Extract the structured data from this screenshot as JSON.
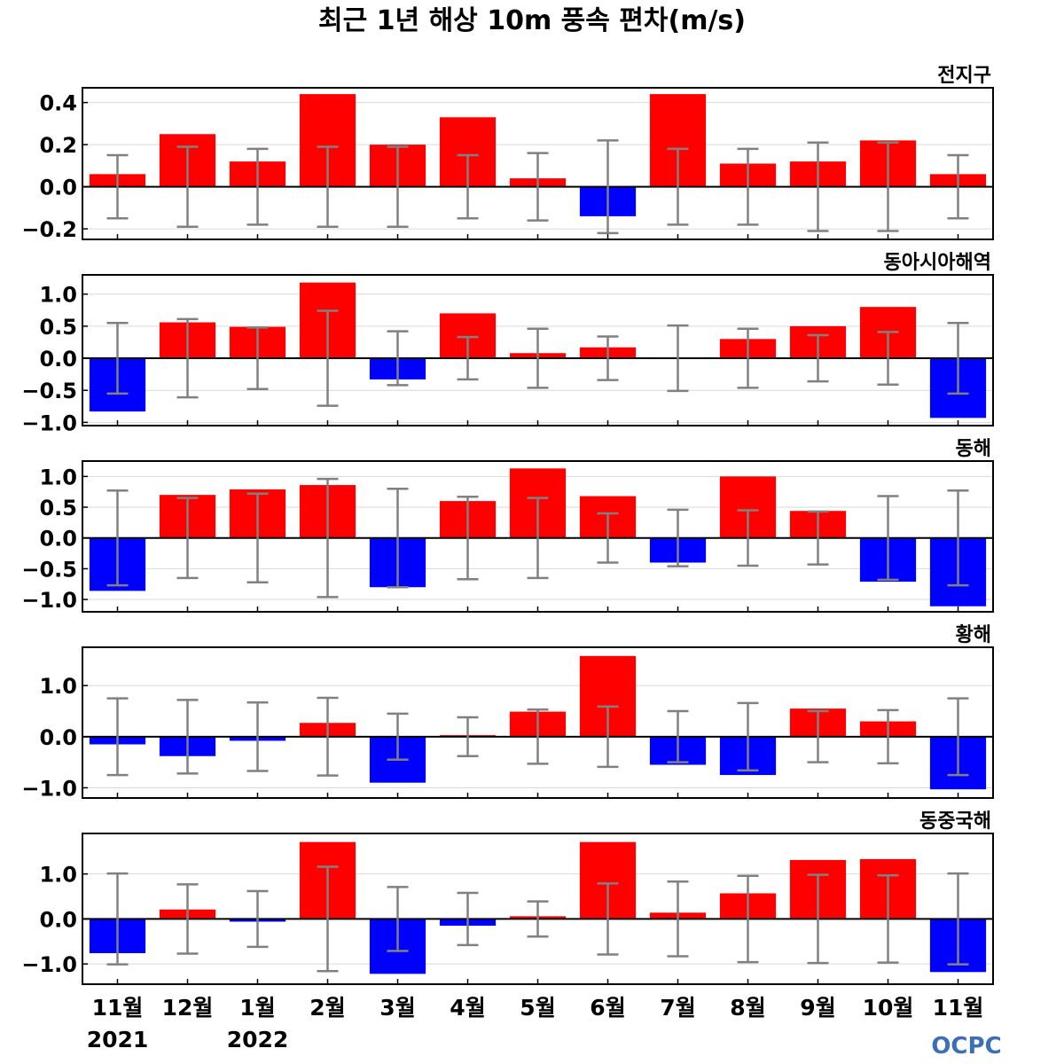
{
  "chart_data": {
    "type": "bar",
    "title": "최근 1년 해상 10m 풍속 편차(m/s)",
    "categories": [
      "11월",
      "12월",
      "1월",
      "2월",
      "3월",
      "4월",
      "5월",
      "6월",
      "7월",
      "8월",
      "9월",
      "10월",
      "11월"
    ],
    "year_labels": [
      "2021",
      "",
      "2022",
      "",
      "",
      "",
      "",
      "",
      "",
      "",
      "",
      "",
      ""
    ],
    "colors": {
      "positive": "#ff0000",
      "negative": "#0000ff",
      "errorbar": "#808080",
      "zero_line": "#000000",
      "grid": "#d9d9d9"
    },
    "panels": [
      {
        "name": "전지구",
        "ylim": [
          -0.25,
          0.47
        ],
        "yticks": [
          0.4,
          0.2,
          0.0,
          -0.2
        ],
        "ytick_labels": [
          "0.4",
          "0.2",
          "0.0",
          "−0.2"
        ],
        "values": [
          0.06,
          0.25,
          0.12,
          0.44,
          0.2,
          0.33,
          0.04,
          -0.14,
          0.44,
          0.11,
          0.12,
          0.22,
          0.06
        ],
        "error": [
          0.15,
          0.19,
          0.18,
          0.19,
          0.19,
          0.15,
          0.16,
          0.22,
          0.18,
          0.18,
          0.21,
          0.21,
          0.15
        ]
      },
      {
        "name": "동아시아해역",
        "ylim": [
          -1.05,
          1.3
        ],
        "yticks": [
          1.0,
          0.5,
          0.0,
          -0.5,
          -1.0
        ],
        "ytick_labels": [
          "1.0",
          "0.5",
          "0.0",
          "−0.5",
          "−1.0"
        ],
        "values": [
          -0.83,
          0.56,
          0.49,
          1.18,
          -0.33,
          0.7,
          0.08,
          0.17,
          0.0,
          0.3,
          0.5,
          0.8,
          -0.93
        ],
        "error": [
          0.55,
          0.61,
          0.48,
          0.74,
          0.42,
          0.33,
          0.46,
          0.34,
          0.51,
          0.46,
          0.36,
          0.41,
          0.55
        ]
      },
      {
        "name": "동해",
        "ylim": [
          -1.2,
          1.25
        ],
        "yticks": [
          1.0,
          0.5,
          0.0,
          -0.5,
          -1.0
        ],
        "ytick_labels": [
          "1.0",
          "0.5",
          "0.0",
          "−0.5",
          "−1.0"
        ],
        "values": [
          -0.86,
          0.7,
          0.79,
          0.86,
          -0.8,
          0.6,
          1.13,
          0.68,
          -0.4,
          1.0,
          0.44,
          -0.71,
          -1.11
        ],
        "error": [
          0.77,
          0.65,
          0.72,
          0.96,
          0.8,
          0.67,
          0.65,
          0.4,
          0.46,
          0.45,
          0.43,
          0.68,
          0.77
        ]
      },
      {
        "name": "황해",
        "ylim": [
          -1.2,
          1.75
        ],
        "yticks": [
          1.0,
          0.0,
          -1.0
        ],
        "ytick_labels": [
          "1.0",
          "0.0",
          "−1.0"
        ],
        "values": [
          -0.15,
          -0.38,
          -0.08,
          0.27,
          -0.9,
          0.03,
          0.49,
          1.58,
          -0.55,
          -0.75,
          0.55,
          0.3,
          -1.03
        ],
        "error": [
          0.75,
          0.72,
          0.67,
          0.76,
          0.45,
          0.38,
          0.53,
          0.59,
          0.5,
          0.66,
          0.5,
          0.52,
          0.75
        ]
      },
      {
        "name": "동중국해",
        "ylim": [
          -1.45,
          1.9
        ],
        "yticks": [
          1.0,
          0.0,
          -1.0
        ],
        "ytick_labels": [
          "1.0",
          "0.0",
          "−1.0"
        ],
        "values": [
          -0.76,
          0.21,
          -0.06,
          1.71,
          -1.22,
          -0.15,
          0.06,
          1.71,
          0.14,
          0.57,
          1.31,
          1.33,
          -1.18
        ],
        "error": [
          1.01,
          0.77,
          0.62,
          1.16,
          0.71,
          0.58,
          0.39,
          0.79,
          0.83,
          0.96,
          0.98,
          0.97,
          1.01
        ]
      }
    ],
    "grid": true,
    "legend": "none"
  },
  "logo": {
    "text": "OCPC"
  }
}
